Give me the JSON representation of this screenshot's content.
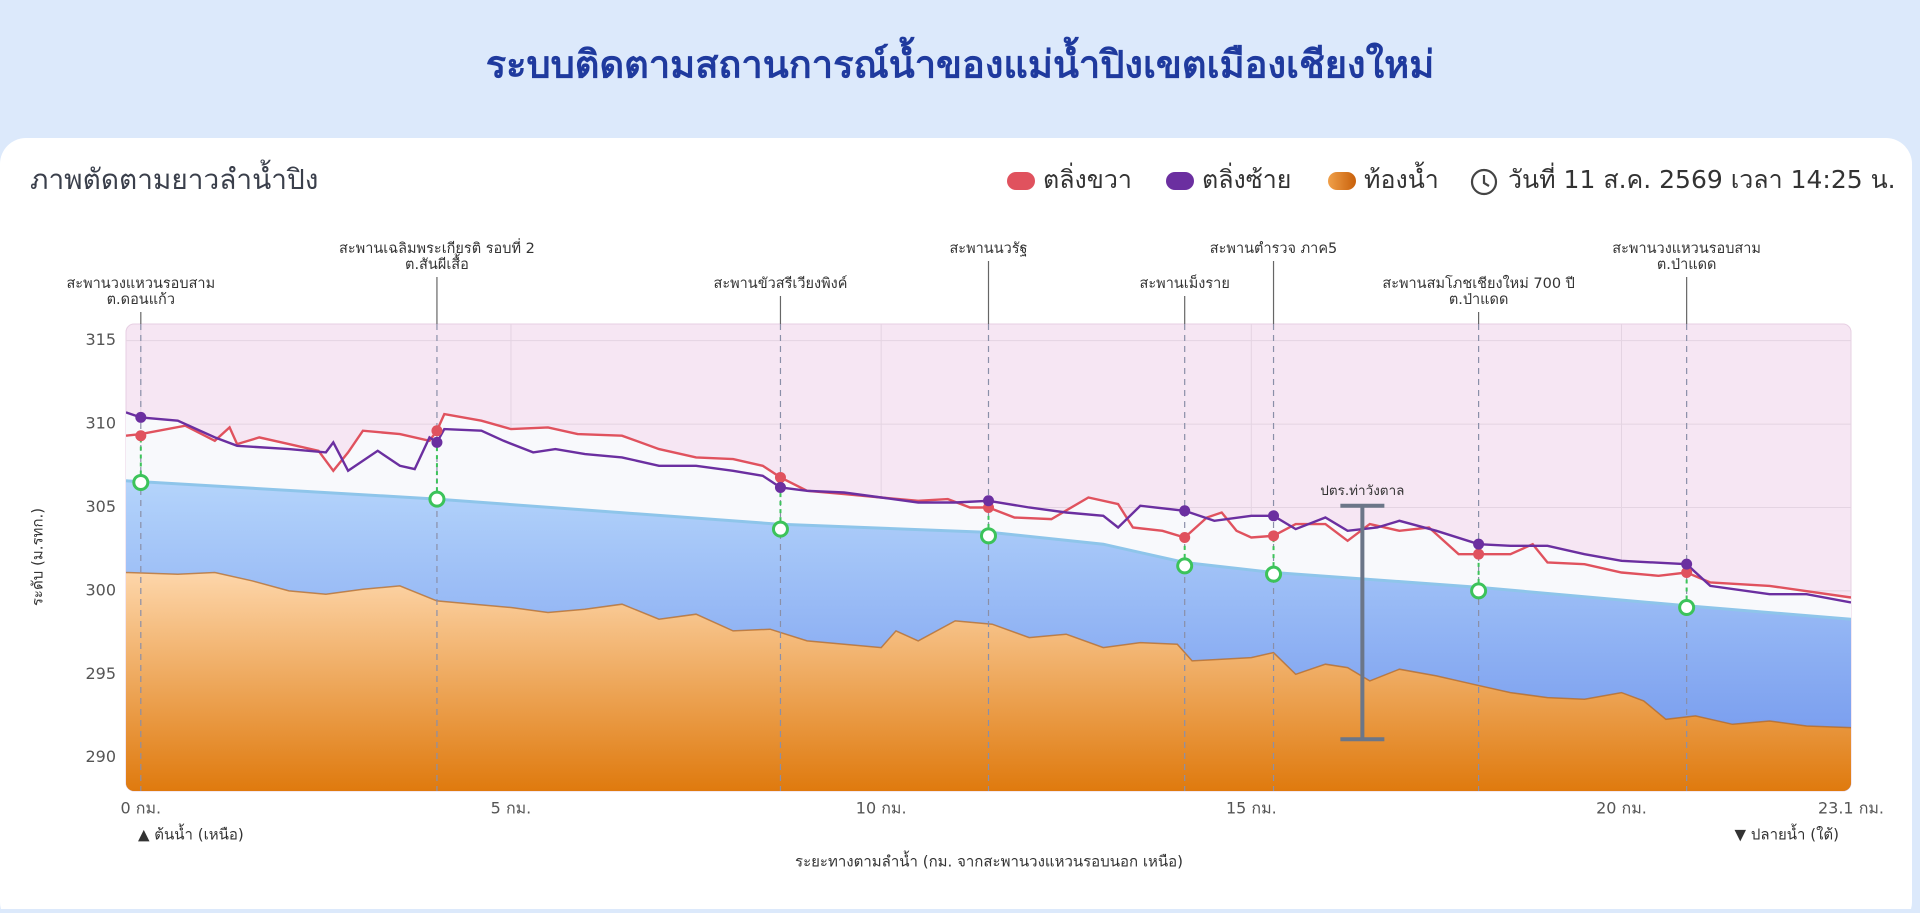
{
  "header": {
    "title": "ระบบติดตามสถานการณ์น้ำของแม่น้ำปิงเขตเมืองเชียงใหม่"
  },
  "chart_data": {
    "type": "profile",
    "title": "ภาพตัดตามยาวลำน้ำปิง",
    "timestamp": "วันที่ 11 ส.ค. 2569 เวลา 14:25 น.",
    "ylabel": "ระดับ (ม.รทก.)",
    "xlabel": "ระยะทางตามลำน้ำ (กม. จากสะพานวงแหวนรอบนอก เหนือ)",
    "upstream_label": "▲ ต้นน้ำ (เหนือ)",
    "downstream_label": "▼ ปลายน้ำ (ใต้)",
    "xlim": [
      -0.2,
      23.1
    ],
    "ylim": [
      288,
      316
    ],
    "xticks": [
      {
        "value": 0,
        "label": "0 กม."
      },
      {
        "value": 5,
        "label": "5 กม."
      },
      {
        "value": 10,
        "label": "10 กม."
      },
      {
        "value": 15,
        "label": "15 กม."
      },
      {
        "value": 20,
        "label": "20 กม."
      },
      {
        "value": 23.1,
        "label": "23.1 กม."
      }
    ],
    "yticks": [
      290,
      295,
      300,
      305,
      310,
      315
    ],
    "grid": true,
    "series": [
      {
        "name": "ตลิ่งขวา",
        "color": "#e0525e",
        "x": [
          -0.2,
          0,
          0.6,
          1.0,
          1.2,
          1.3,
          1.6,
          2.0,
          2.4,
          2.6,
          2.8,
          3.0,
          3.5,
          3.9,
          4.0,
          4.1,
          4.6,
          5.0,
          5.5,
          5.9,
          6.5,
          7.0,
          7.5,
          8.0,
          8.4,
          8.64,
          9.0,
          9.5,
          10.0,
          10.5,
          10.9,
          11.2,
          11.45,
          11.8,
          12.3,
          12.8,
          13.2,
          13.4,
          13.8,
          14.1,
          14.4,
          14.6,
          14.8,
          15.0,
          15.3,
          15.6,
          16.0,
          16.3,
          16.6,
          17.0,
          17.4,
          17.8,
          18.07,
          18.5,
          18.8,
          19.0,
          19.5,
          20.0,
          20.5,
          20.88,
          21.2,
          22.0,
          23.1
        ],
        "values": [
          309.3,
          309.4,
          309.9,
          309.0,
          309.8,
          308.8,
          309.2,
          308.8,
          308.4,
          307.2,
          308.3,
          309.6,
          309.4,
          309.0,
          309.6,
          310.6,
          310.2,
          309.7,
          309.8,
          309.4,
          309.3,
          308.5,
          308.0,
          307.9,
          307.5,
          306.8,
          306.0,
          305.8,
          305.6,
          305.4,
          305.5,
          305.0,
          305.0,
          304.4,
          304.3,
          305.6,
          305.2,
          303.8,
          303.6,
          303.2,
          304.4,
          304.7,
          303.6,
          303.2,
          303.3,
          304.0,
          304.0,
          303.0,
          304.0,
          303.6,
          303.8,
          302.2,
          302.2,
          302.2,
          302.8,
          301.7,
          301.6,
          301.1,
          300.9,
          301.1,
          300.5,
          300.3,
          299.6
        ]
      },
      {
        "name": "ตลิ่งซ้าย",
        "color": "#6b2fa0",
        "x": [
          -0.2,
          0,
          0.5,
          1.0,
          1.3,
          2.0,
          2.5,
          2.6,
          2.8,
          3.2,
          3.5,
          3.7,
          3.9,
          4.0,
          4.1,
          4.6,
          4.9,
          5.3,
          5.6,
          6.0,
          6.5,
          7.0,
          7.5,
          8.0,
          8.4,
          8.64,
          9.0,
          9.5,
          10.0,
          10.5,
          11.0,
          11.45,
          12.0,
          12.5,
          13.0,
          13.2,
          13.5,
          14.1,
          14.5,
          15.0,
          15.3,
          15.6,
          16.0,
          16.3,
          16.7,
          17.0,
          17.5,
          18.07,
          18.5,
          19.0,
          19.5,
          20.0,
          20.88,
          21.2,
          22.0,
          22.5,
          23.1
        ],
        "values": [
          310.7,
          310.4,
          310.2,
          309.2,
          308.7,
          308.5,
          308.3,
          308.9,
          307.2,
          308.4,
          307.5,
          307.3,
          309.2,
          308.9,
          309.7,
          309.6,
          309.0,
          308.3,
          308.5,
          308.2,
          308.0,
          307.5,
          307.5,
          307.2,
          306.9,
          306.2,
          306.0,
          305.9,
          305.6,
          305.3,
          305.3,
          305.4,
          305.0,
          304.7,
          304.5,
          303.8,
          305.1,
          304.8,
          304.2,
          304.5,
          304.5,
          303.7,
          304.4,
          303.6,
          303.8,
          304.2,
          303.6,
          302.8,
          302.7,
          302.7,
          302.2,
          301.8,
          301.6,
          300.3,
          299.8,
          299.8,
          299.3
        ]
      },
      {
        "name": "ท้องน้ำ",
        "color": "#e07a10",
        "x": [
          -0.2,
          0.5,
          1.0,
          1.5,
          2.0,
          2.5,
          3.0,
          3.5,
          4.0,
          4.5,
          5.0,
          5.5,
          6.0,
          6.5,
          7.0,
          7.5,
          8.0,
          8.5,
          9.0,
          9.5,
          10.0,
          10.2,
          10.5,
          11.0,
          11.5,
          12.0,
          12.5,
          13.0,
          13.5,
          14.0,
          14.2,
          14.6,
          15.0,
          15.3,
          15.6,
          16.0,
          16.3,
          16.6,
          17.0,
          17.5,
          18.0,
          18.5,
          19.0,
          19.5,
          20.0,
          20.3,
          20.6,
          21.0,
          21.5,
          22.0,
          22.5,
          23.1
        ],
        "values": [
          301.1,
          301.0,
          301.1,
          300.6,
          300.0,
          299.8,
          300.1,
          300.3,
          299.4,
          299.2,
          299.0,
          298.7,
          298.9,
          299.2,
          298.3,
          298.6,
          297.6,
          297.7,
          297.0,
          296.8,
          296.6,
          297.6,
          297.0,
          298.2,
          298.0,
          297.2,
          297.4,
          296.6,
          296.9,
          296.8,
          295.8,
          295.9,
          296.0,
          296.3,
          295.0,
          295.6,
          295.4,
          294.6,
          295.3,
          294.9,
          294.4,
          293.9,
          293.6,
          293.5,
          293.9,
          293.4,
          292.3,
          292.5,
          292.0,
          292.2,
          291.9,
          291.8
        ]
      }
    ],
    "water_surface": {
      "color": "#8ec5ea",
      "x": [
        -0.2,
        4,
        8.6,
        11.5,
        13,
        14.1,
        15.3,
        18.1,
        20.9,
        23.1
      ],
      "values": [
        306.6,
        305.5,
        304.0,
        303.5,
        302.8,
        301.7,
        301.1,
        300.2,
        299.1,
        298.3
      ]
    },
    "bridges": [
      {
        "label": [
          "สะพานวงแหวนรอบสาม",
          "ต.ดอนแก้ว"
        ],
        "km": 0,
        "right_bank": 309.3,
        "left_bank": 310.4,
        "water": 306.5
      },
      {
        "label": [
          "สะพานเฉลิมพระเกียรติ รอบที่ 2",
          "ต.สันผีเสื้อ"
        ],
        "km": 4.0,
        "right_bank": 309.6,
        "left_bank": 308.9,
        "water": 305.5
      },
      {
        "label": [
          "สะพานขัวสรีเวียงพิงค์"
        ],
        "km": 8.64,
        "right_bank": 306.8,
        "left_bank": 306.2,
        "water": 303.7
      },
      {
        "label": [
          "สะพานนวรัฐ"
        ],
        "km": 11.45,
        "right_bank": 305.0,
        "left_bank": 305.4,
        "water": 303.3
      },
      {
        "label": [
          "สะพานเม็งราย"
        ],
        "km": 14.1,
        "right_bank": 303.2,
        "left_bank": 304.8,
        "water": 301.5
      },
      {
        "label": [
          "สะพานตำรวจ ภาค5"
        ],
        "km": 15.3,
        "right_bank": 303.3,
        "left_bank": 304.5,
        "water": 301.0
      },
      {
        "label": [
          "สะพานสมโภชเชียงใหม่ 700 ปี",
          "ต.ป่าแดด"
        ],
        "km": 18.07,
        "right_bank": 302.2,
        "left_bank": 302.8,
        "water": 300.0
      },
      {
        "label": [
          "สะพานวงแหวนรอบสาม",
          "ต.ป่าแดด"
        ],
        "km": 20.88,
        "right_bank": 301.1,
        "left_bank": 301.6,
        "water": 299.0
      }
    ],
    "gauge": {
      "label": "ปตร.ท่าวังตาล",
      "km": 16.5,
      "low": 291.1,
      "high": 305.1,
      "color": "#6b7688"
    }
  }
}
